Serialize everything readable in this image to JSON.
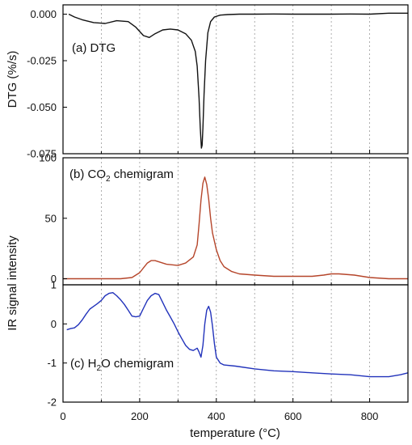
{
  "chart_data": {
    "type": "line",
    "x_axis": {
      "label": "temperature (°C)",
      "range": [
        0,
        900
      ],
      "ticks": [
        0,
        200,
        400,
        600,
        800
      ],
      "tick_labels": [
        "0",
        "200",
        "400",
        "600",
        "800"
      ],
      "grid": "vertical dashed lines every 100 °C"
    },
    "shared_ylabel": "IR signal intensity",
    "panels": [
      {
        "id": "dtg",
        "label_prefix": "(a) DTG",
        "ylabel": "DTG (%/s)",
        "ylim": [
          -0.075,
          0.005
        ],
        "yticks": [
          0.0,
          -0.025,
          -0.05,
          -0.075
        ],
        "ytick_labels": [
          "0.000",
          "-0.025",
          "-0.050",
          "-0.075"
        ],
        "series": [
          {
            "color": "#111111",
            "x": [
              15,
              30,
              50,
              80,
              110,
              140,
              170,
              190,
              210,
              225,
              240,
              260,
              280,
              300,
              320,
              335,
              345,
              350,
              355,
              358,
              361,
              363,
              365,
              368,
              372,
              378,
              385,
              395,
              410,
              430,
              460,
              500,
              550,
              600,
              650,
              700,
              750,
              800,
              850,
              900
            ],
            "y": [
              0.0,
              -0.0015,
              -0.003,
              -0.0045,
              -0.005,
              -0.0035,
              -0.004,
              -0.007,
              -0.0115,
              -0.0125,
              -0.0105,
              -0.0085,
              -0.008,
              -0.0085,
              -0.0105,
              -0.014,
              -0.02,
              -0.028,
              -0.045,
              -0.061,
              -0.072,
              -0.0705,
              -0.061,
              -0.043,
              -0.025,
              -0.01,
              -0.004,
              -0.0015,
              -0.0005,
              -0.0002,
              0.0,
              0.0,
              0.0001,
              0.0,
              0.0,
              0.0,
              0.0001,
              0.0,
              0.0005,
              0.0005
            ]
          }
        ]
      },
      {
        "id": "co2",
        "label_prefix": "(b) CO",
        "label_subscript": "2",
        "label_suffix": " chemigram",
        "ylim": [
          -5,
          100
        ],
        "yticks": [
          0,
          50,
          100
        ],
        "ytick_labels": [
          "0",
          "50",
          "100"
        ],
        "series": [
          {
            "color": "#b5452a",
            "x": [
              0,
              50,
              100,
              150,
              180,
              200,
              210,
              220,
              230,
              240,
              250,
              270,
              300,
              320,
              340,
              350,
              355,
              360,
              365,
              370,
              375,
              380,
              385,
              390,
              400,
              410,
              420,
              440,
              460,
              500,
              550,
              600,
              650,
              680,
              700,
              720,
              760,
              800,
              850,
              900
            ],
            "y": [
              0,
              0,
              0,
              0,
              1,
              5,
              9,
              13,
              15,
              15,
              14,
              12,
              11,
              13,
              18,
              28,
              45,
              65,
              79,
              84,
              78,
              66,
              50,
              38,
              24,
              15,
              10,
              6,
              4,
              3,
              2,
              2,
              2,
              3,
              4,
              4,
              3,
              1,
              0,
              0
            ]
          }
        ]
      },
      {
        "id": "h2o",
        "label_prefix": "(c) H",
        "label_subscript": "2",
        "label_suffix": "O chemigram",
        "ylim": [
          -2,
          1
        ],
        "yticks": [
          1,
          0,
          -1,
          -2
        ],
        "ytick_labels": [
          "1",
          "0",
          "-1",
          "-2"
        ],
        "series": [
          {
            "color": "#2233bb",
            "x": [
              10,
              20,
              30,
              40,
              50,
              60,
              70,
              80,
              90,
              100,
              110,
              120,
              130,
              140,
              150,
              160,
              170,
              180,
              190,
              200,
              210,
              220,
              230,
              240,
              250,
              260,
              270,
              280,
              290,
              300,
              310,
              320,
              330,
              340,
              350,
              355,
              360,
              365,
              370,
              375,
              380,
              385,
              390,
              395,
              400,
              410,
              420,
              450,
              500,
              550,
              600,
              650,
              700,
              750,
              800,
              850,
              880,
              900
            ],
            "y": [
              -0.15,
              -0.12,
              -0.1,
              -0.02,
              0.1,
              0.25,
              0.38,
              0.45,
              0.52,
              0.6,
              0.72,
              0.78,
              0.8,
              0.72,
              0.62,
              0.5,
              0.35,
              0.2,
              0.18,
              0.2,
              0.4,
              0.6,
              0.72,
              0.78,
              0.75,
              0.55,
              0.35,
              0.18,
              0.0,
              -0.2,
              -0.38,
              -0.55,
              -0.65,
              -0.68,
              -0.62,
              -0.72,
              -0.85,
              -0.55,
              0.0,
              0.35,
              0.45,
              0.3,
              -0.05,
              -0.5,
              -0.85,
              -1.0,
              -1.05,
              -1.08,
              -1.15,
              -1.2,
              -1.22,
              -1.25,
              -1.28,
              -1.3,
              -1.35,
              -1.35,
              -1.3,
              -1.25
            ]
          }
        ]
      }
    ]
  }
}
